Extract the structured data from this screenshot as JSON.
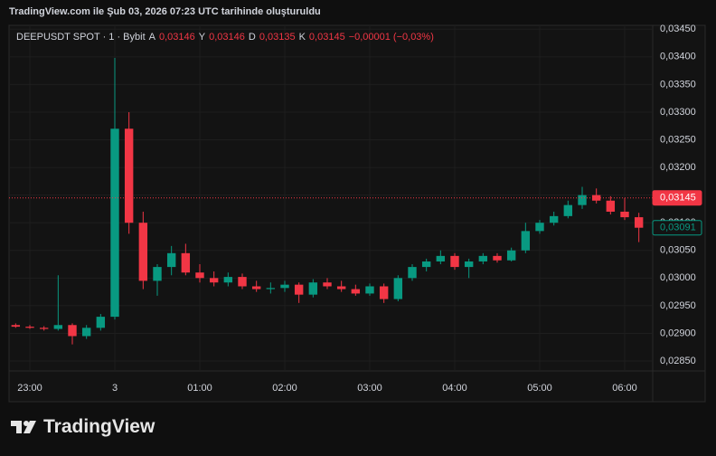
{
  "header": {
    "title": "TradingView.com ile Şub 03, 2026 07:23 UTC tarihinde oluşturuldu"
  },
  "chart_data": {
    "type": "candlestick",
    "symbol": "DEEPUSDT SPOT · 1 · Bybit",
    "ohlc_legend": [
      {
        "key": "A",
        "value": "0,03146"
      },
      {
        "key": "Y",
        "value": "0,03146"
      },
      {
        "key": "D",
        "value": "0,03135"
      },
      {
        "key": "K",
        "value": "0,03145"
      }
    ],
    "change": "−0,00001 (−0,03%)",
    "categories": [
      null,
      "23:00",
      null,
      null,
      null,
      null,
      null,
      "3",
      null,
      null,
      null,
      null,
      null,
      "01:00",
      null,
      null,
      null,
      null,
      null,
      "02:00",
      null,
      null,
      null,
      null,
      null,
      "03:00",
      null,
      null,
      null,
      null,
      null,
      "04:00",
      null,
      null,
      null,
      null,
      null,
      "05:00",
      null,
      null,
      null,
      null,
      null,
      "06:00",
      null
    ],
    "open": [
      0.02915,
      0.02912,
      0.0291,
      0.02908,
      0.02915,
      0.02895,
      0.0291,
      0.0293,
      0.0327,
      0.031,
      0.02995,
      0.0302,
      0.03045,
      0.0301,
      0.03,
      0.02992,
      0.03002,
      0.02985,
      0.0298,
      0.02982,
      0.02988,
      0.0297,
      0.02992,
      0.02985,
      0.0298,
      0.02972,
      0.02985,
      0.02962,
      0.03,
      0.0302,
      0.0303,
      0.0304,
      0.0302,
      0.0303,
      0.0304,
      0.03032,
      0.0305,
      0.03085,
      0.031,
      0.03112,
      0.03132,
      0.0315,
      0.0314,
      0.0312,
      0.0311
    ],
    "high": [
      0.02918,
      0.02915,
      0.02913,
      0.03005,
      0.02918,
      0.02915,
      0.02935,
      0.03398,
      0.033,
      0.0312,
      0.03025,
      0.03058,
      0.03062,
      0.03025,
      0.03012,
      0.0301,
      0.03008,
      0.02995,
      0.02992,
      0.02995,
      0.02992,
      0.02998,
      0.03,
      0.02995,
      0.02988,
      0.0299,
      0.0299,
      0.03005,
      0.03025,
      0.03035,
      0.0305,
      0.03045,
      0.03035,
      0.03045,
      0.03045,
      0.03055,
      0.031,
      0.03105,
      0.0312,
      0.0314,
      0.03165,
      0.03162,
      0.03148,
      0.03145,
      0.03118
    ],
    "low": [
      0.0291,
      0.02908,
      0.02905,
      0.02905,
      0.0288,
      0.0289,
      0.02905,
      0.02925,
      0.0308,
      0.0298,
      0.02968,
      0.03005,
      0.03005,
      0.02992,
      0.02985,
      0.02985,
      0.0298,
      0.02975,
      0.02972,
      0.02975,
      0.02955,
      0.02965,
      0.0298,
      0.02975,
      0.02968,
      0.02968,
      0.02955,
      0.02958,
      0.02995,
      0.03012,
      0.03025,
      0.03015,
      0.03,
      0.03025,
      0.03028,
      0.0303,
      0.03045,
      0.0308,
      0.03095,
      0.03108,
      0.03125,
      0.03135,
      0.03115,
      0.03105,
      0.03065
    ],
    "close": [
      0.02912,
      0.0291,
      0.02908,
      0.02915,
      0.02895,
      0.0291,
      0.0293,
      0.0327,
      0.031,
      0.02995,
      0.0302,
      0.03045,
      0.0301,
      0.03,
      0.02992,
      0.03002,
      0.02985,
      0.0298,
      0.02982,
      0.02988,
      0.0297,
      0.02992,
      0.02985,
      0.0298,
      0.02972,
      0.02985,
      0.02962,
      0.03,
      0.0302,
      0.0303,
      0.0304,
      0.0302,
      0.0303,
      0.0304,
      0.03032,
      0.0305,
      0.03085,
      0.031,
      0.03112,
      0.03132,
      0.0315,
      0.0314,
      0.0312,
      0.0311,
      0.03091
    ],
    "up_color": "#089981",
    "down_color": "#f23645",
    "ylim": [
      0.02832,
      0.03457
    ],
    "yticks": [
      {
        "value": 0.0285,
        "label": "0,02850"
      },
      {
        "value": 0.029,
        "label": "0,02900"
      },
      {
        "value": 0.0295,
        "label": "0,02950"
      },
      {
        "value": 0.03,
        "label": "0,03000"
      },
      {
        "value": 0.0305,
        "label": "0,03050"
      },
      {
        "value": 0.031,
        "label": "0,03100"
      },
      {
        "value": 0.0315,
        "label": "0,03150"
      },
      {
        "value": 0.032,
        "label": "0,03200"
      },
      {
        "value": 0.0325,
        "label": "0,03250"
      },
      {
        "value": 0.033,
        "label": "0,03300"
      },
      {
        "value": 0.0335,
        "label": "0,03350"
      },
      {
        "value": 0.034,
        "label": "0,03400"
      },
      {
        "value": 0.0345,
        "label": "0,03450"
      }
    ],
    "grid": true,
    "price_lines": [
      {
        "value": 0.03145,
        "label": "0,03145",
        "color": "#f23645"
      },
      {
        "value": 0.03091,
        "label": "0,03091",
        "color": "#089981"
      }
    ]
  },
  "footer": {
    "logo": "TradingView"
  }
}
